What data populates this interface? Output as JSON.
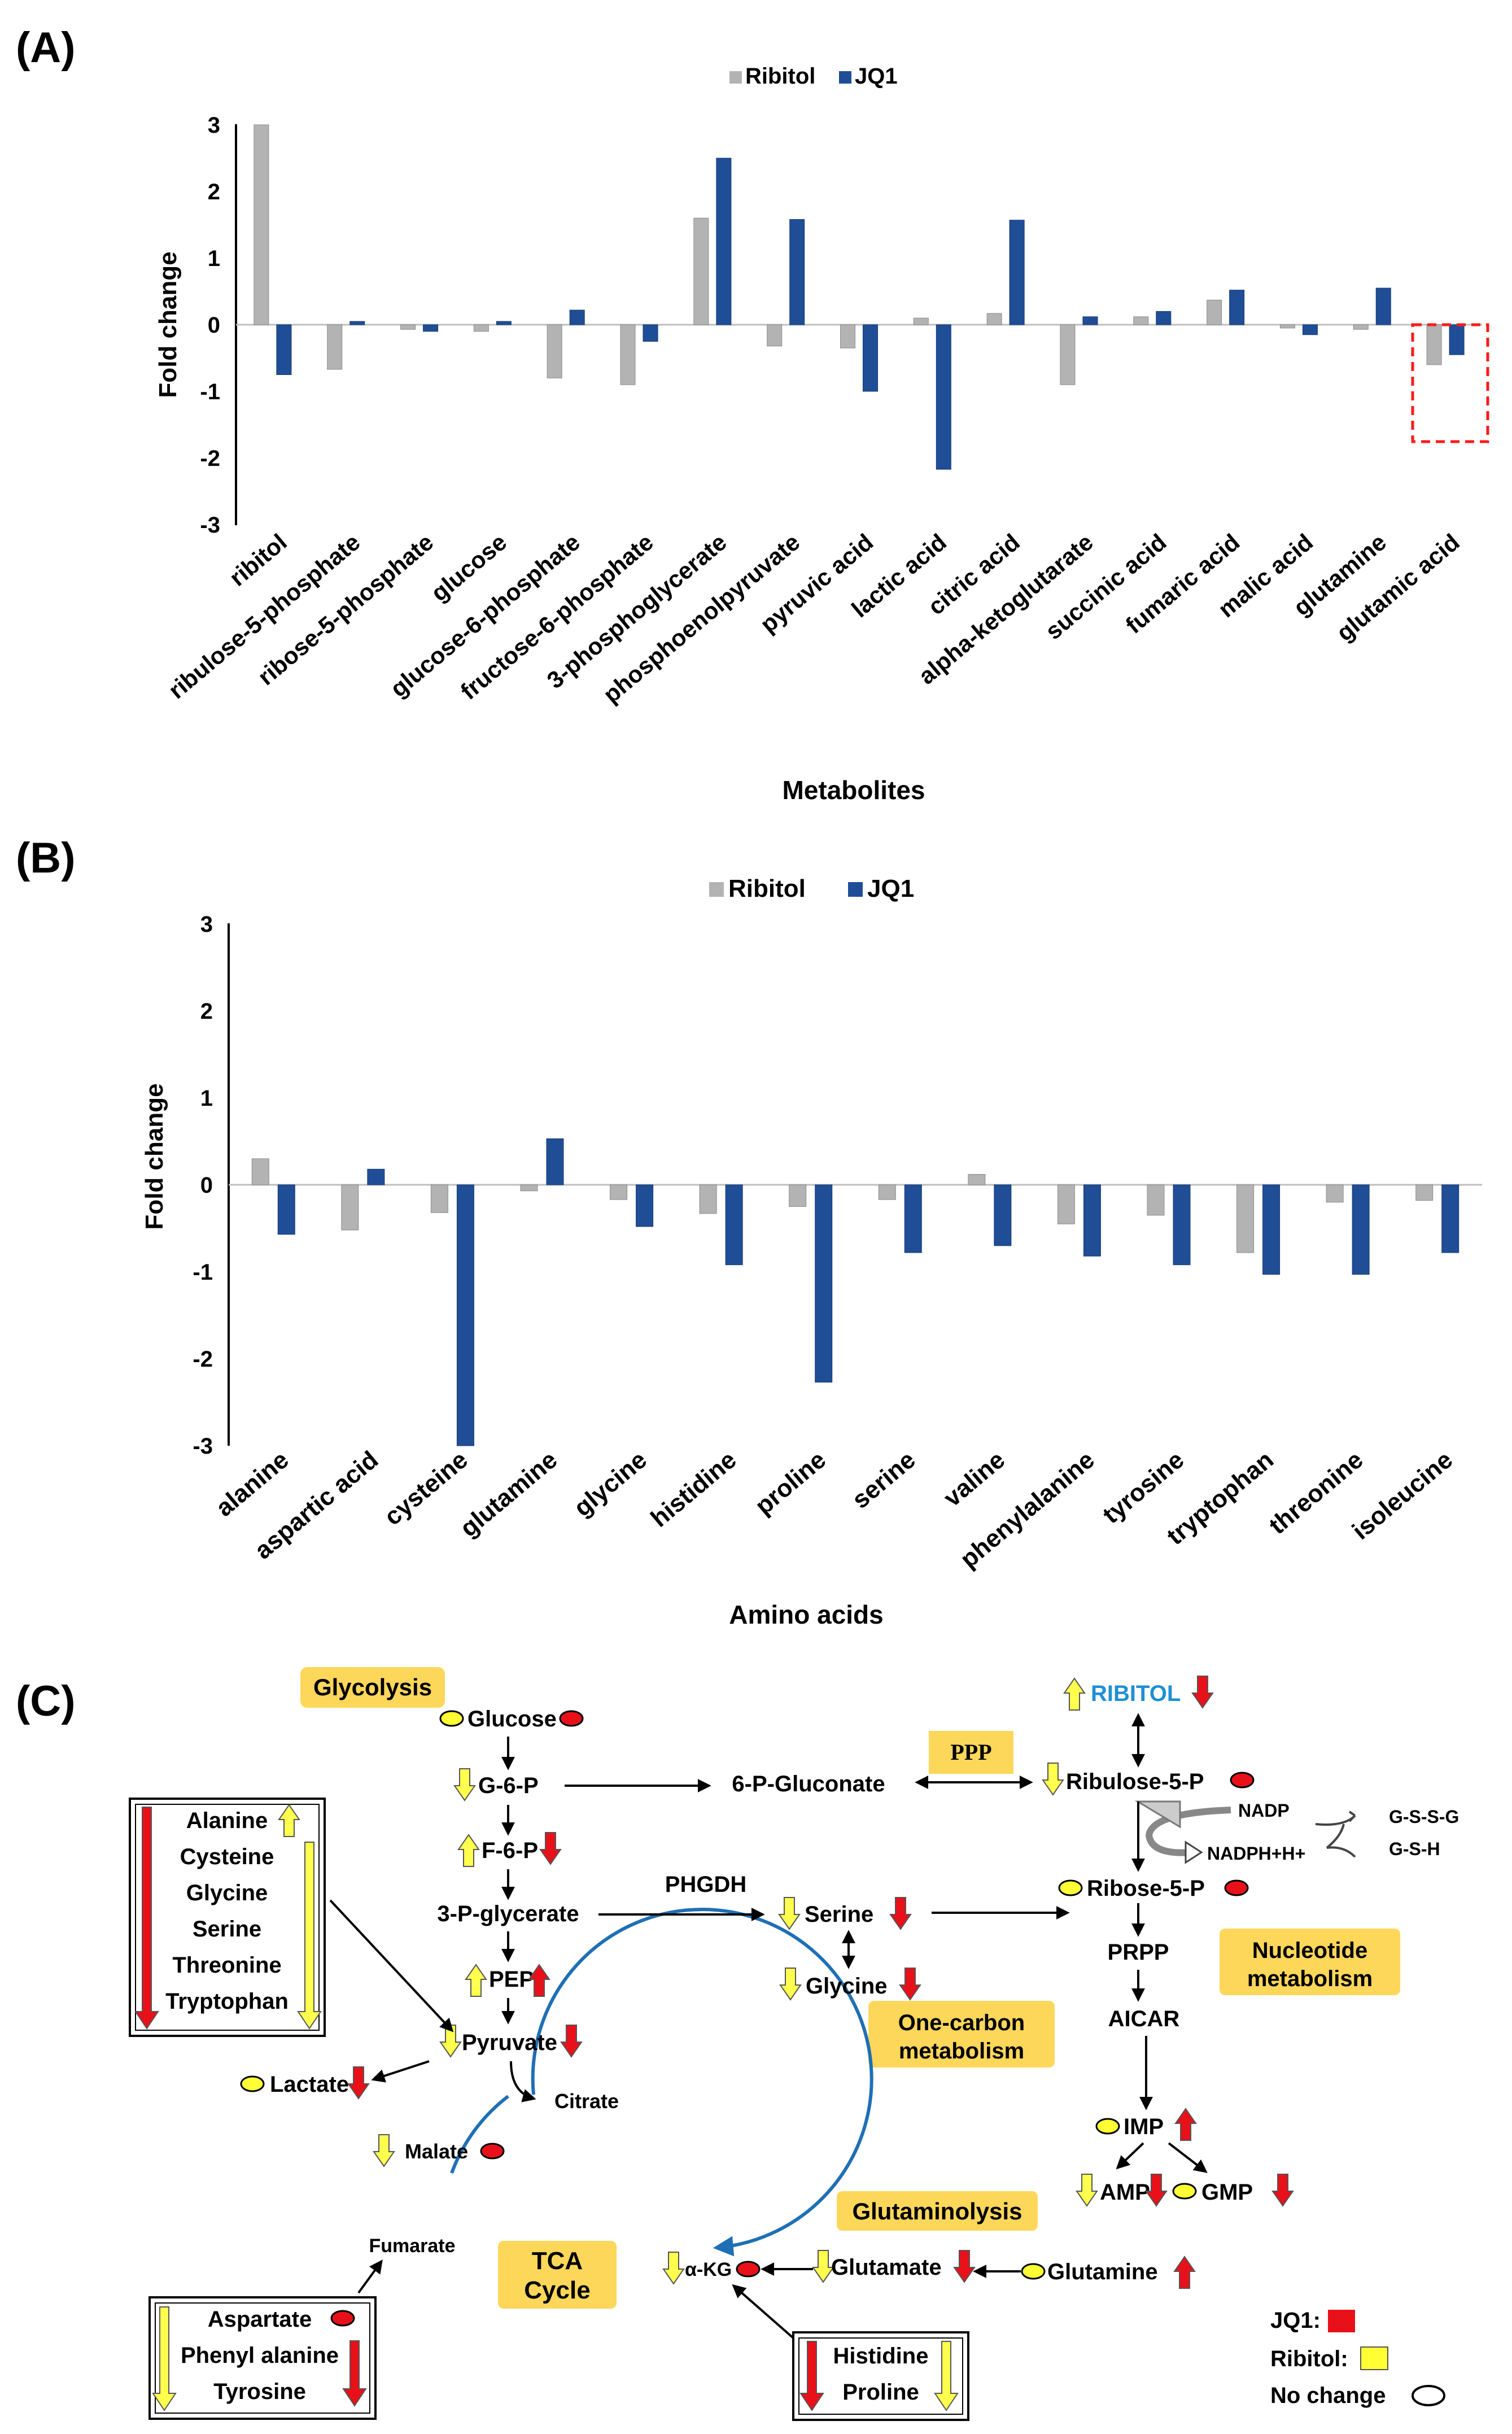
{
  "panel_labels": {
    "a": "(A)",
    "b": "(B)",
    "c": "(C)"
  },
  "chart_data": [
    {
      "id": "A",
      "type": "bar",
      "title": "",
      "xlabel": "Metabolites",
      "ylabel": "Fold change",
      "ylim": [
        -3,
        3
      ],
      "yticks": [
        "3",
        "2",
        "1",
        "0",
        "-1",
        "-2",
        "-3"
      ],
      "legend": [
        "Ribitol",
        "JQ1"
      ],
      "colors": {
        "Ribitol": "#b3b3b3",
        "JQ1": "#1f4e96"
      },
      "categories": [
        "ribitol",
        "ribulose-5-phosphate",
        "ribose-5-phosphate",
        "glucose",
        "glucose-6-phosphate",
        "fructose-6-phosphate",
        "3-phosphoglycerate",
        "phosphoenolpyruvate",
        "pyruvic acid",
        "lactic acid",
        "citric acid",
        "alpha-ketoglutarate",
        "succinic acid",
        "fumaric acid",
        "malic acid",
        "glutamine",
        "glutamic acid"
      ],
      "series": [
        {
          "name": "Ribitol",
          "values": [
            3.0,
            -0.67,
            -0.07,
            -0.1,
            -0.8,
            -0.9,
            1.6,
            -0.32,
            -0.35,
            0.1,
            0.17,
            -0.9,
            0.12,
            0.37,
            -0.05,
            -0.07,
            -0.6
          ]
        },
        {
          "name": "JQ1",
          "values": [
            -0.75,
            0.05,
            -0.1,
            0.05,
            0.22,
            -0.25,
            2.5,
            1.58,
            -1.0,
            -2.17,
            1.57,
            0.12,
            0.2,
            0.52,
            -0.15,
            0.55,
            -0.45
          ]
        }
      ],
      "highlight": "glutamic acid"
    },
    {
      "id": "B",
      "type": "bar",
      "title": "",
      "xlabel": "Amino acids",
      "ylabel": "Fold change",
      "ylim": [
        -3,
        3
      ],
      "yticks": [
        "3",
        "2",
        "1",
        "0",
        "-1",
        "-2",
        "-3"
      ],
      "legend": [
        "Ribitol",
        "JQ1"
      ],
      "colors": {
        "Ribitol": "#b3b3b3",
        "JQ1": "#1f4e96"
      },
      "categories": [
        "alanine",
        "aspartic acid",
        "cysteine",
        "glutamine",
        "glycine",
        "histidine",
        "proline",
        "serine",
        "valine",
        "phenylalanine",
        "tyrosine",
        "tryptophan",
        "threonine",
        "isoleucine"
      ],
      "series": [
        {
          "name": "Ribitol",
          "values": [
            0.3,
            -0.52,
            -0.32,
            -0.07,
            -0.17,
            -0.33,
            -0.25,
            -0.17,
            0.12,
            -0.45,
            -0.35,
            -0.78,
            -0.2,
            -0.18
          ]
        },
        {
          "name": "JQ1",
          "values": [
            -0.57,
            0.18,
            -3.0,
            0.53,
            -0.48,
            -0.92,
            -2.27,
            -0.78,
            -0.7,
            -0.82,
            -0.92,
            -1.03,
            -1.03,
            -0.78
          ]
        }
      ]
    }
  ],
  "diagram": {
    "glycolysis": "Glycolysis",
    "glucose": "Glucose",
    "g6p": "G-6-P",
    "f6p": "F-6-P",
    "p3g": "3-P-glycerate",
    "pep": "PEP",
    "pyruvate": "Pyruvate",
    "lactate": "Lactate",
    "citrate": "Citrate",
    "malate": "Malate",
    "fumarate": "Fumarate",
    "akg": "α-KG",
    "tca": "TCA",
    "cycle": "Cycle",
    "glutamate": "Glutamate",
    "glutamine": "Glutamine",
    "glutaminolysis": "Glutaminolysis",
    "gluconate": "6-P-Gluconate",
    "ppp": "PPP",
    "ribitol": "RIBITOL",
    "ribulose": "Ribulose-5-P",
    "nadp": "NADP",
    "nadph": "NADPH+H+",
    "gssg": "G-S-S-G",
    "gsh": "G-S-H",
    "ribose": "Ribose-5-P",
    "phgdh": "PHGDH",
    "serine": "Serine",
    "glycine": "Glycine",
    "one_carbon_1": "One-carbon",
    "one_carbon_2": "metabolism",
    "prpp": "PRPP",
    "aicar": "AICAR",
    "nucleotide_1": "Nucleotide",
    "nucleotide_2": "metabolism",
    "imp": "IMP",
    "amp": "AMP",
    "gmp": "GMP",
    "box1": [
      "Alanine",
      "Cysteine",
      "Glycine",
      "Serine",
      "Threonine",
      "Tryptophan"
    ],
    "box2": [
      "Aspartate",
      "Phenyl alanine",
      "Tyrosine"
    ],
    "box3": [
      "Histidine",
      "Proline"
    ],
    "legend_jq1": "JQ1:",
    "legend_ribitol": "Ribitol:",
    "legend_nochange": "No change"
  }
}
